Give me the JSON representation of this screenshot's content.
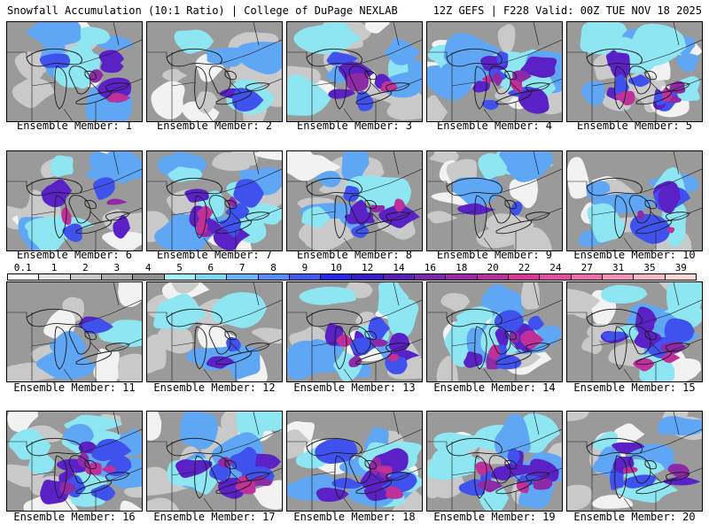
{
  "header": {
    "left_title": "Snowfall Accumulation (10:1 Ratio) | College of DuPage NEXLAB",
    "right_title": "12Z GEFS | F228 Valid: 00Z TUE NOV 18 2025"
  },
  "label_prefix": "Ensemble Member: ",
  "members": [
    {
      "number": "1",
      "label": "Ensemble Member: 1",
      "intensity": "moderate"
    },
    {
      "number": "2",
      "label": "Ensemble Member: 2",
      "intensity": "light"
    },
    {
      "number": "3",
      "label": "Ensemble Member: 3",
      "intensity": "moderate"
    },
    {
      "number": "4",
      "label": "Ensemble Member: 4",
      "intensity": "heavy"
    },
    {
      "number": "5",
      "label": "Ensemble Member: 5",
      "intensity": "heavy"
    },
    {
      "number": "6",
      "label": "Ensemble Member: 6",
      "intensity": "moderate"
    },
    {
      "number": "7",
      "label": "Ensemble Member: 7",
      "intensity": "heavy"
    },
    {
      "number": "8",
      "label": "Ensemble Member: 8",
      "intensity": "moderate"
    },
    {
      "number": "9",
      "label": "Ensemble Member: 9",
      "intensity": "light"
    },
    {
      "number": "10",
      "label": "Ensemble Member: 10",
      "intensity": "moderate"
    },
    {
      "number": "11",
      "label": "Ensemble Member: 11",
      "intensity": "light"
    },
    {
      "number": "12",
      "label": "Ensemble Member: 12",
      "intensity": "light"
    },
    {
      "number": "13",
      "label": "Ensemble Member: 13",
      "intensity": "heavy"
    },
    {
      "number": "14",
      "label": "Ensemble Member: 14",
      "intensity": "heavy"
    },
    {
      "number": "15",
      "label": "Ensemble Member: 15",
      "intensity": "heavy"
    },
    {
      "number": "16",
      "label": "Ensemble Member: 16",
      "intensity": "heavy"
    },
    {
      "number": "17",
      "label": "Ensemble Member: 17",
      "intensity": "heavy"
    },
    {
      "number": "18",
      "label": "Ensemble Member: 18",
      "intensity": "heavy"
    },
    {
      "number": "19",
      "label": "Ensemble Member: 19",
      "intensity": "heavy"
    },
    {
      "number": "20",
      "label": "Ensemble Member: 20",
      "intensity": "moderate"
    }
  ],
  "colorbar": {
    "ticks": [
      "0.1",
      "1",
      "2",
      "3",
      "4",
      "5",
      "6",
      "7",
      "8",
      "9",
      "10",
      "12",
      "14",
      "16",
      "18",
      "20",
      "22",
      "24",
      "27",
      "31",
      "35",
      "39"
    ],
    "colors": [
      "#ffffff",
      "#e2e2e2",
      "#c8c8c8",
      "#acacac",
      "#909090",
      "#a6f0f6",
      "#7fd8f2",
      "#6fb2f7",
      "#5a8cf5",
      "#3f5cef",
      "#2a2ae6",
      "#3a1cc9",
      "#5a1fb3",
      "#7a2aa8",
      "#9b2ca2",
      "#b8329c",
      "#d23a96",
      "#e050a0",
      "#ea70ac",
      "#f294b8",
      "#f7b8c8",
      "#fad6d6"
    ]
  },
  "palette": {
    "base_gray": "#9a9a9a",
    "light_gray": "#c9c9c9",
    "white": "#f2f2f2",
    "cyan": "#8ee6f2",
    "light_blue": "#5fa6f5",
    "blue": "#3f52ee",
    "violet": "#5a22c6",
    "purple": "#8e2aa6",
    "magenta": "#c0309a",
    "lake": "#b8b8b8",
    "outline": "#1a1a1a"
  }
}
